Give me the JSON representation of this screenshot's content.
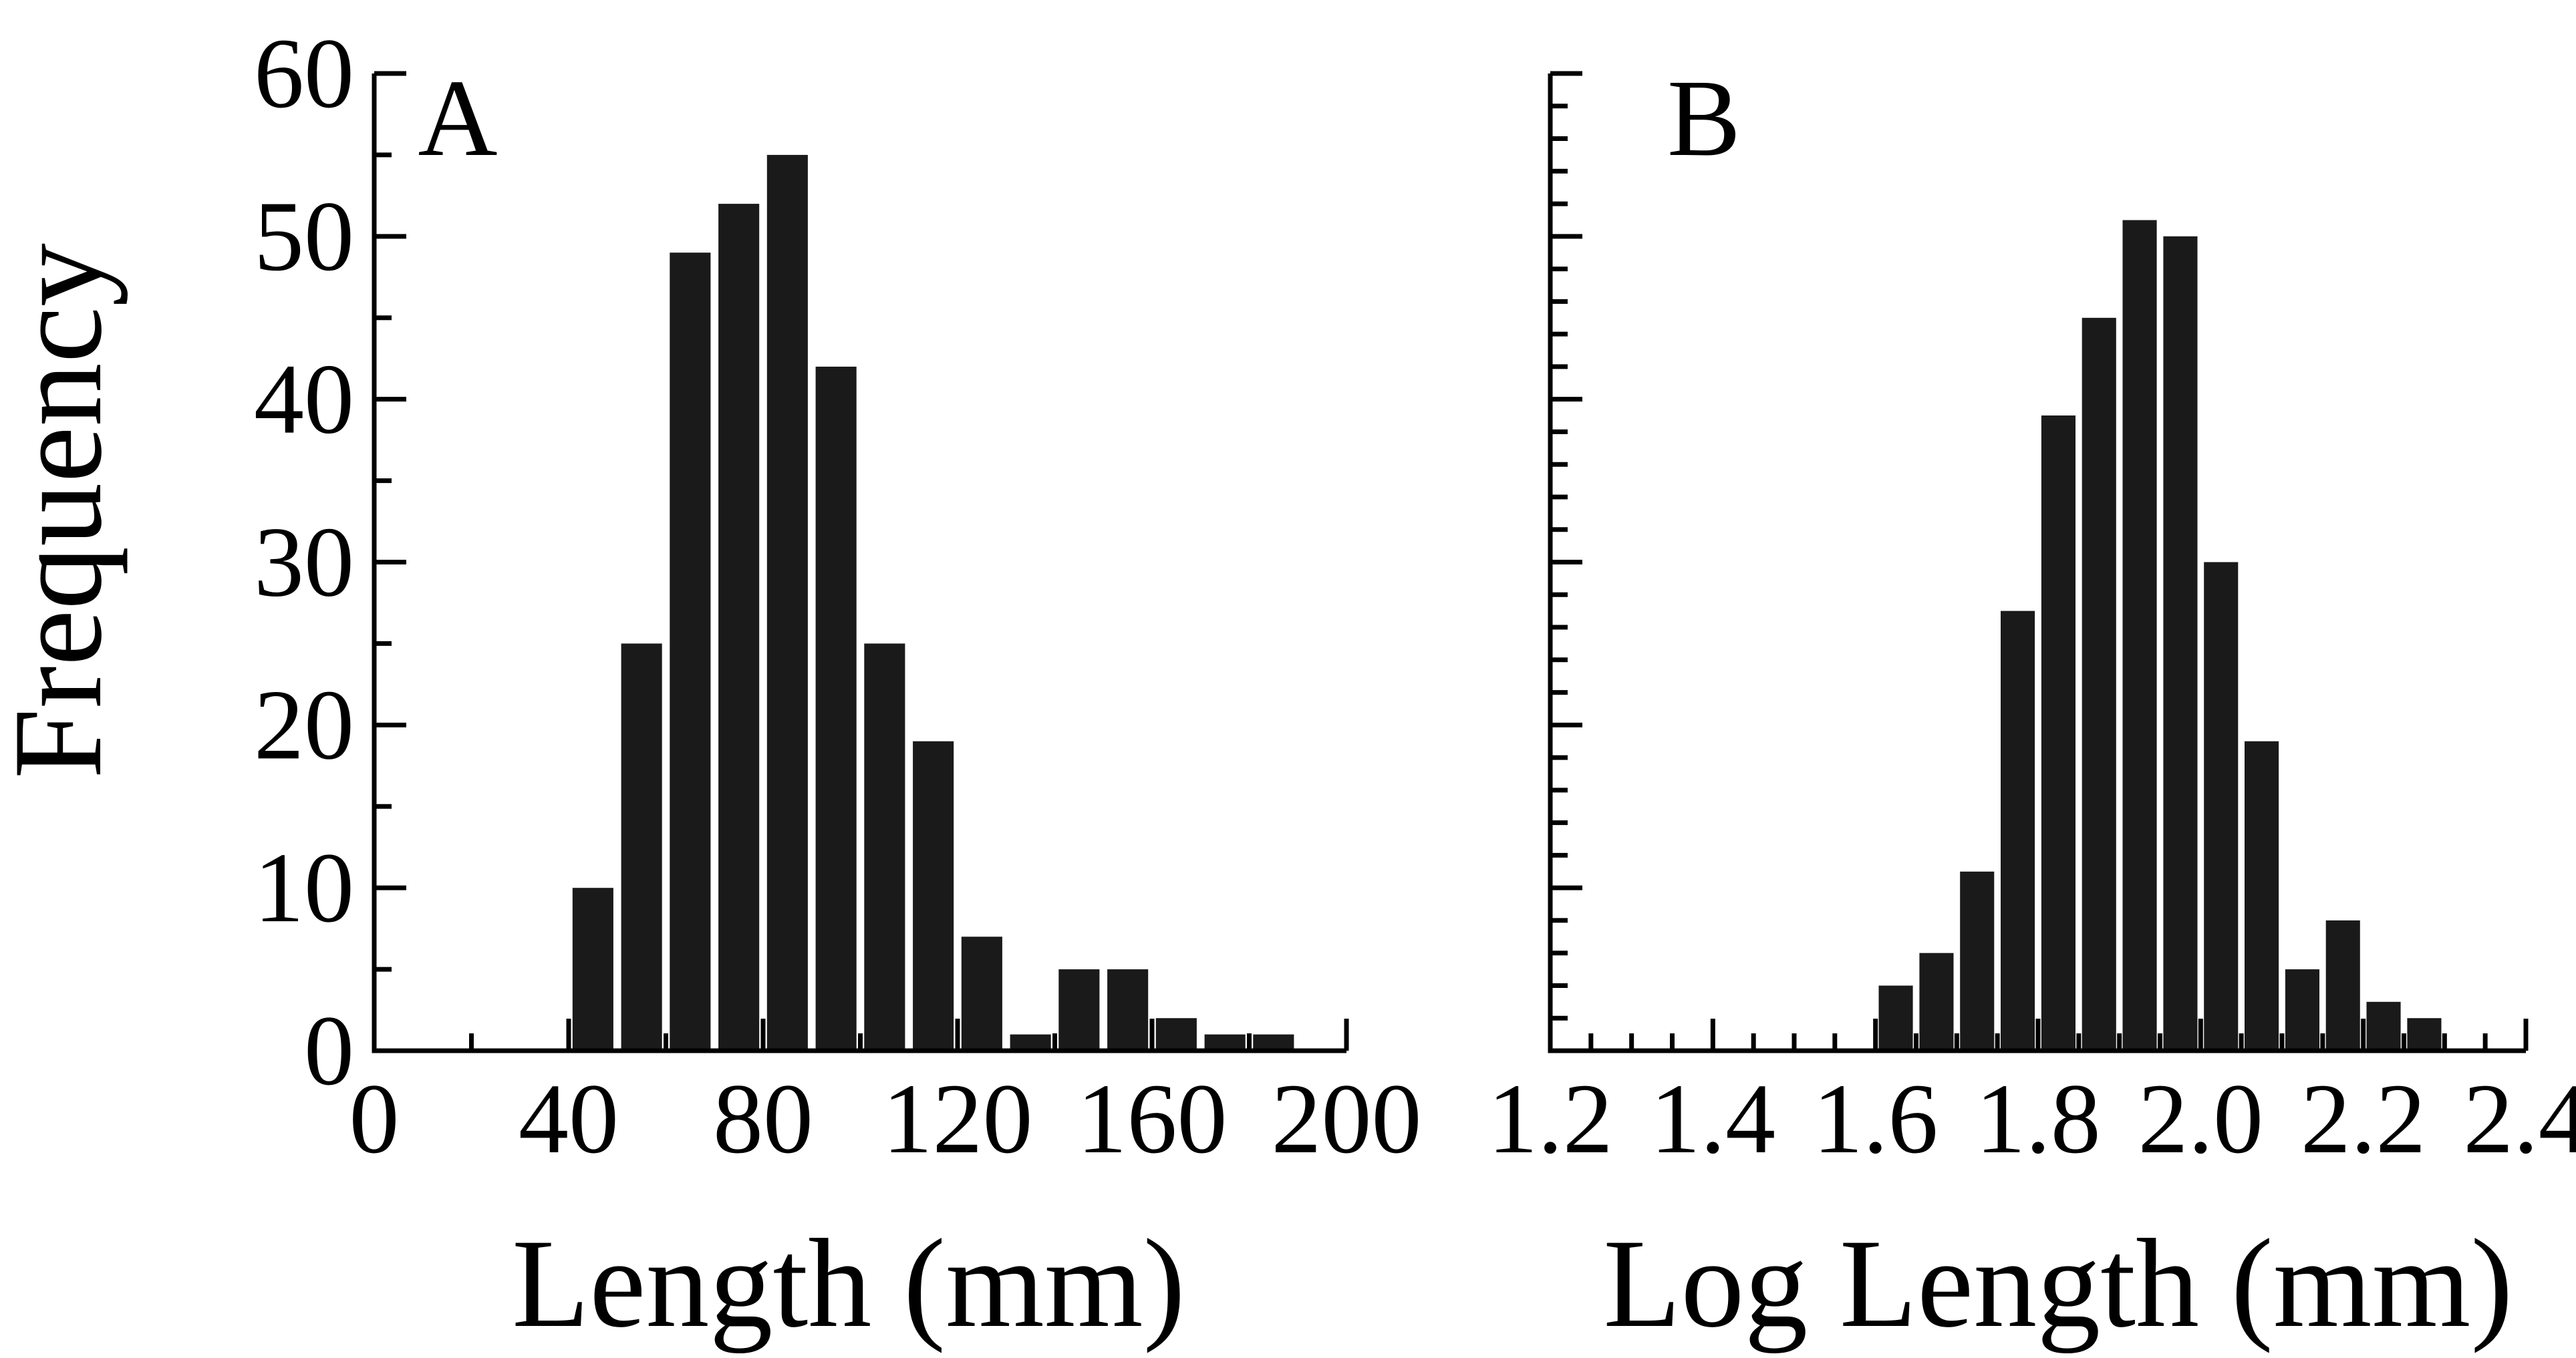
{
  "figure": {
    "ylabel": "Frequency",
    "bar_color": "#1a1a1a",
    "axis_color": "#000000"
  },
  "chart_data": [
    {
      "type": "bar",
      "panel": "A",
      "title": "",
      "xlabel": "Length (mm)",
      "ylabel": "Frequency",
      "xlim": [
        0,
        200
      ],
      "ylim": [
        0,
        60
      ],
      "bin_width": 10,
      "x_ticks": [
        0,
        40,
        80,
        120,
        160,
        200
      ],
      "x_tick_labels": [
        "0",
        "40",
        "80",
        "120",
        "160",
        "200"
      ],
      "x_minor_ticks": [
        20,
        60,
        100,
        140,
        180
      ],
      "y_ticks": [
        0,
        10,
        20,
        30,
        40,
        50,
        60
      ],
      "y_tick_labels": [
        "0",
        "10",
        "20",
        "30",
        "40",
        "50",
        "60"
      ],
      "y_minor_step": 5,
      "bins": [
        45,
        55,
        65,
        75,
        85,
        95,
        105,
        115,
        125,
        135,
        145,
        155,
        165,
        175,
        185
      ],
      "values": [
        10,
        25,
        49,
        52,
        55,
        42,
        25,
        19,
        7,
        1,
        5,
        5,
        2,
        1,
        1
      ]
    },
    {
      "type": "bar",
      "panel": "B",
      "title": "",
      "xlabel": "Log Length (mm)",
      "ylabel": "Frequency",
      "xlim": [
        1.2,
        2.4
      ],
      "ylim": [
        0,
        60
      ],
      "bin_width": 0.05,
      "x_ticks": [
        1.2,
        1.4,
        1.6,
        1.8,
        2.0,
        2.2,
        2.4
      ],
      "x_tick_labels": [
        "1.2",
        "1.4",
        "1.6",
        "1.8",
        "2.0",
        "2.2",
        "2.4"
      ],
      "x_minor_step": 0.05,
      "y_ticks": [
        0,
        10,
        20,
        30,
        40,
        50,
        60
      ],
      "y_tick_labels": [],
      "y_minor_step": 2,
      "bins": [
        1.625,
        1.675,
        1.725,
        1.775,
        1.825,
        1.875,
        1.925,
        1.975,
        2.025,
        2.075,
        2.125,
        2.175,
        2.225,
        2.275
      ],
      "values": [
        4,
        6,
        11,
        27,
        39,
        45,
        51,
        50,
        30,
        19,
        5,
        8,
        3,
        2
      ]
    }
  ]
}
